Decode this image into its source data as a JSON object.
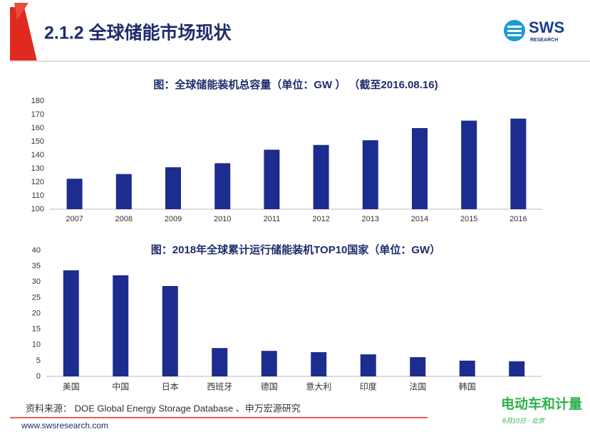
{
  "header": {
    "title": "2.1.2 全球储能市场现状",
    "logo": "SWS",
    "logo_sub": "RESEARCH"
  },
  "chart_data": [
    {
      "type": "bar",
      "title": "图：全球储能装机总容量（单位：GW ） （截至2016.08.16)",
      "categories": [
        "2007",
        "2008",
        "2009",
        "2010",
        "2011",
        "2012",
        "2013",
        "2014",
        "2015",
        "2016"
      ],
      "values": [
        122.5,
        126,
        131,
        134,
        144,
        147.5,
        151,
        160,
        165.5,
        167
      ],
      "color": "#1c2c8f",
      "ylim": [
        100,
        180
      ],
      "yticks": [
        100,
        110,
        120,
        130,
        140,
        150,
        160,
        170,
        180
      ],
      "grid": false
    },
    {
      "type": "bar",
      "title": "图：2018年全球累计运行储能装机TOP10国家（单位：GW）",
      "categories": [
        "美国",
        "中国",
        "日本",
        "西班牙",
        "德国",
        "意大利",
        "印度",
        "法国",
        "韩国",
        null
      ],
      "values": [
        33.7,
        32.1,
        28.7,
        9,
        8.1,
        7.7,
        7,
        6.1,
        5,
        4.8
      ],
      "color": "#1c2c8f",
      "ylim": [
        0,
        40
      ],
      "yticks": [
        0,
        5,
        10,
        15,
        20,
        25,
        30,
        35,
        40
      ],
      "grid": false
    }
  ],
  "source": "资料来源： DOE Global Energy Storage Database 、申万宏源研究",
  "website": "www.swsresearch.com",
  "watermark": {
    "title": "电动车和计量",
    "subtitle": "8月10日 · 北京"
  }
}
